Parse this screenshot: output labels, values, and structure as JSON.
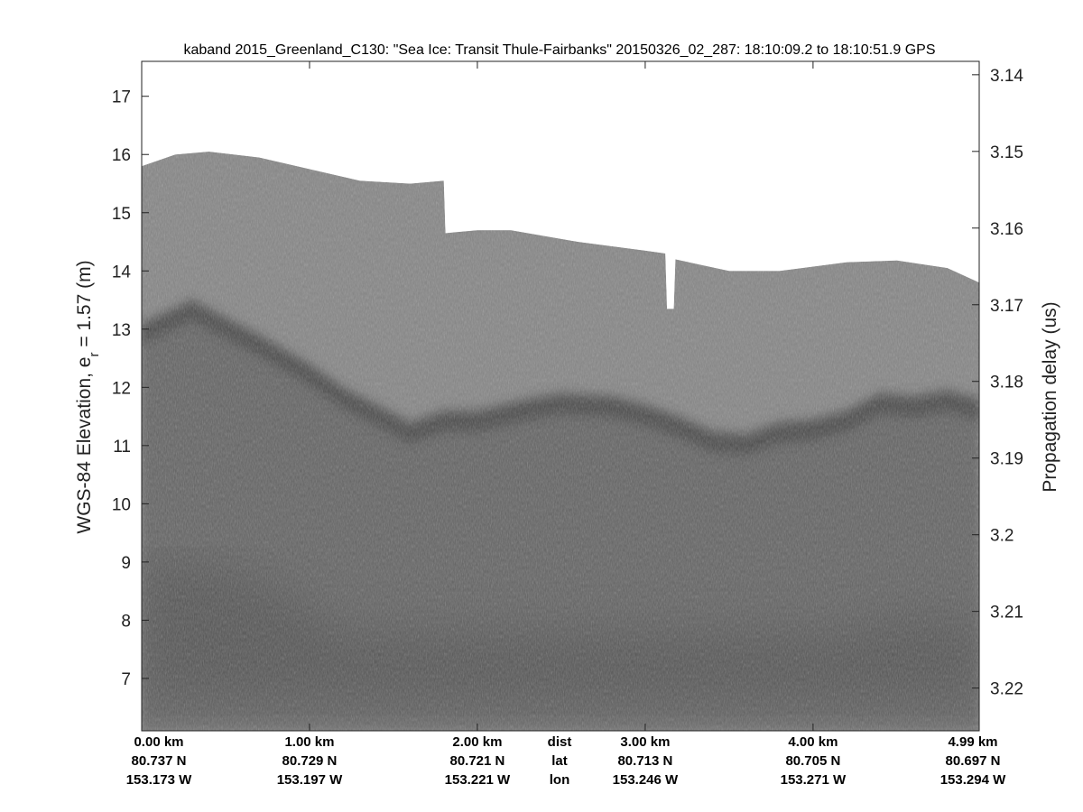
{
  "chart_data": {
    "type": "heatmap",
    "title": "kaband 2015_Greenland_C130: \"Sea Ice: Transit Thule-Fairbanks\"  20150326_02_287: 18:10:09.2 to 18:10:51.9 GPS",
    "ylabel": "WGS-84 Elevation, e_r = 1.57 (m)",
    "ylabel_right": "Propagation delay (us)",
    "ylim": [
      6.1,
      17.6
    ],
    "xlim_km": [
      0,
      4.99
    ],
    "y_ticks": [
      7,
      8,
      9,
      10,
      11,
      12,
      13,
      14,
      15,
      16,
      17
    ],
    "y_right_ticks": [
      "3.14",
      "3.15",
      "3.16",
      "3.17",
      "3.18",
      "3.19",
      "3.2",
      "3.21",
      "3.22"
    ],
    "x_row_labels": [
      "dist",
      "lat",
      "lon"
    ],
    "x_ticks": [
      {
        "km": 0.0,
        "dist": "0.00 km",
        "lat": "80.737 N",
        "lon": "153.173 W"
      },
      {
        "km": 1.0,
        "dist": "1.00 km",
        "lat": "80.729 N",
        "lon": "153.197 W"
      },
      {
        "km": 2.0,
        "dist": "2.00 km",
        "lat": "80.721 N",
        "lon": "153.221 W"
      },
      {
        "km": 3.0,
        "dist": "3.00 km",
        "lat": "80.713 N",
        "lon": "153.246 W"
      },
      {
        "km": 4.0,
        "dist": "4.00 km",
        "lat": "80.705 N",
        "lon": "153.271 W"
      },
      {
        "km": 4.99,
        "dist": "4.99 km",
        "lat": "80.697 N",
        "lon": "153.294 W"
      }
    ],
    "colormap": "gray",
    "surface_top_profile": {
      "x_km": [
        0,
        0.2,
        0.4,
        0.7,
        1.0,
        1.3,
        1.6,
        1.8,
        1.81,
        2.0,
        2.2,
        2.6,
        3.0,
        3.12,
        3.13,
        3.17,
        3.18,
        3.5,
        3.8,
        4.2,
        4.5,
        4.8,
        4.99
      ],
      "elevation_m": [
        15.8,
        16.0,
        16.05,
        15.95,
        15.75,
        15.55,
        15.5,
        15.55,
        14.65,
        14.7,
        14.7,
        14.5,
        14.35,
        14.3,
        13.35,
        13.35,
        14.2,
        14.0,
        14.0,
        14.15,
        14.18,
        14.05,
        13.8
      ]
    },
    "interface_profile": {
      "x_km": [
        0,
        0.15,
        0.3,
        0.5,
        0.7,
        1.0,
        1.2,
        1.4,
        1.6,
        1.8,
        2.0,
        2.3,
        2.5,
        2.8,
        3.0,
        3.2,
        3.4,
        3.6,
        3.8,
        4.0,
        4.2,
        4.4,
        4.6,
        4.8,
        4.99
      ],
      "elevation_m": [
        13.0,
        13.2,
        13.4,
        13.1,
        12.8,
        12.3,
        11.9,
        11.6,
        11.3,
        11.5,
        11.5,
        11.7,
        11.8,
        11.75,
        11.6,
        11.4,
        11.15,
        11.1,
        11.3,
        11.35,
        11.5,
        11.8,
        11.75,
        11.85,
        11.7
      ]
    },
    "grid": false,
    "colors": {
      "background": "#ffffff",
      "echo_light": "#858585",
      "echo_dark": "#3c3c3c",
      "echo_deep": "#636363"
    }
  }
}
